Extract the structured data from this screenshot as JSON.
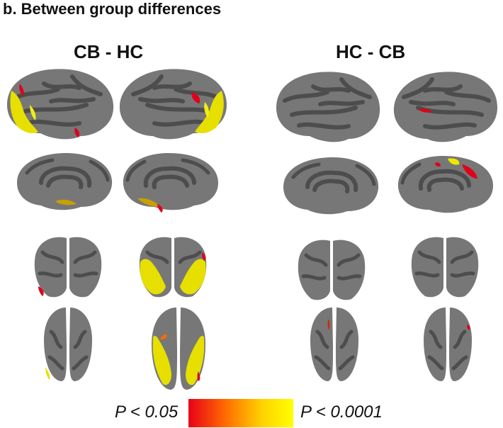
{
  "title": "b. Between group differences",
  "groups": [
    {
      "label": "CB - HC"
    },
    {
      "label": "HC - CB"
    }
  ],
  "legend": {
    "low_label": "P < 0.05",
    "high_label": "P < 0.0001",
    "colors": [
      "#e8001a",
      "#ff6a00",
      "#ffd200",
      "#ffff00"
    ]
  },
  "colors": {
    "cortex_base": "#757575",
    "sulcus": "#4e4e4e",
    "significant_low": "#e8001a",
    "significant_high": "#f3f000"
  }
}
